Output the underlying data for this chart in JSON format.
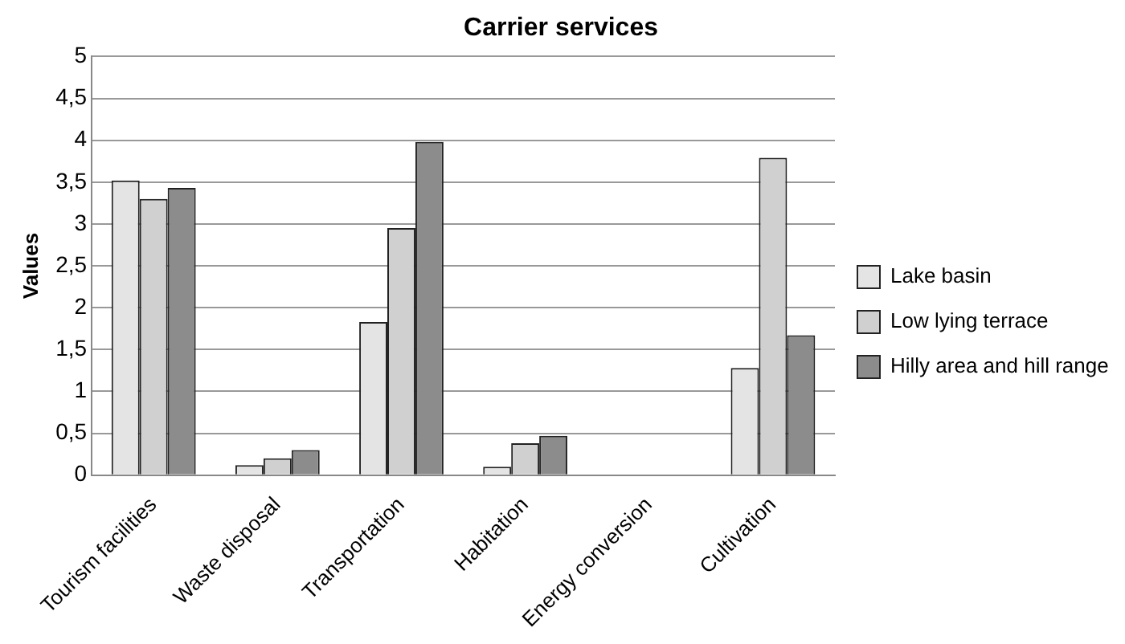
{
  "chart_data": {
    "type": "bar",
    "title": "Carrier services",
    "ylabel": "Values",
    "categories": [
      "Tourism facilities",
      "Waste disposal",
      "Transportation",
      "Habitation",
      "Energy conversion",
      "Cultivation"
    ],
    "series": [
      {
        "name": "Lake basin",
        "color": "#e4e4e4",
        "values": [
          3.52,
          0.12,
          1.83,
          0.1,
          0,
          1.28
        ]
      },
      {
        "name": "Low lying terrace",
        "color": "#d0d0d0",
        "values": [
          3.3,
          0.2,
          2.95,
          0.38,
          0,
          3.79
        ]
      },
      {
        "name": "Hilly area and hill range",
        "color": "#8c8c8c",
        "values": [
          3.43,
          0.3,
          3.98,
          0.47,
          0,
          1.67
        ]
      }
    ],
    "ylim": [
      0,
      5
    ],
    "yticks": [
      0,
      {
        "value": 0.5,
        "label": "0,5"
      },
      1,
      {
        "value": 1.5,
        "label": "1,5"
      },
      2,
      {
        "value": 2.5,
        "label": "2,5"
      },
      3,
      {
        "value": 3.5,
        "label": "3,5"
      },
      4,
      {
        "value": 4.5,
        "label": "4,5"
      },
      5
    ],
    "grid": "y",
    "legend": "right"
  }
}
